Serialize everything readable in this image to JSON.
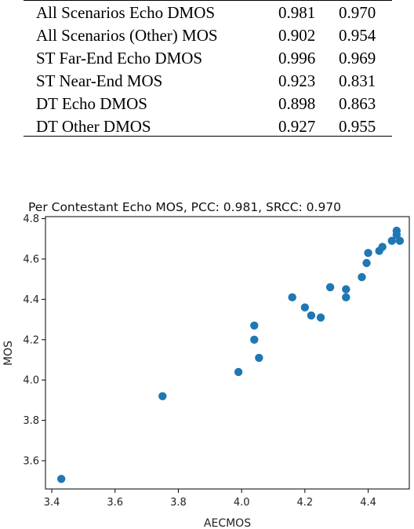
{
  "table": {
    "rows": [
      {
        "label": "All Scenarios Echo DMOS",
        "pcc": "0.981",
        "srcc": "0.970"
      },
      {
        "label": "All Scenarios (Other) MOS",
        "pcc": "0.902",
        "srcc": "0.954"
      },
      {
        "label": "ST Far-End Echo DMOS",
        "pcc": "0.996",
        "srcc": "0.969"
      },
      {
        "label": "ST Near-End MOS",
        "pcc": "0.923",
        "srcc": "0.831"
      },
      {
        "label": "DT Echo DMOS",
        "pcc": "0.898",
        "srcc": "0.863"
      },
      {
        "label": "DT Other DMOS",
        "pcc": "0.927",
        "srcc": "0.955"
      }
    ]
  },
  "chart_data": {
    "type": "scatter",
    "title": "Per Contestant Echo MOS, PCC: 0.981, SRCC: 0.970",
    "xlabel": "AECMOS",
    "ylabel": "MOS",
    "xlim": [
      3.38,
      4.53
    ],
    "ylim": [
      3.46,
      4.81
    ],
    "xticks": [
      "3.4",
      "3.6",
      "3.8",
      "4.0",
      "4.2",
      "4.4"
    ],
    "yticks": [
      "3.6",
      "3.8",
      "4.0",
      "4.2",
      "4.4",
      "4.6",
      "4.8"
    ],
    "grid": false,
    "marker_color": "#1f77b4",
    "points": [
      {
        "x": 3.43,
        "y": 3.51
      },
      {
        "x": 3.75,
        "y": 3.92
      },
      {
        "x": 3.99,
        "y": 4.04
      },
      {
        "x": 4.04,
        "y": 4.2
      },
      {
        "x": 4.04,
        "y": 4.27
      },
      {
        "x": 4.055,
        "y": 4.11
      },
      {
        "x": 4.16,
        "y": 4.41
      },
      {
        "x": 4.2,
        "y": 4.36
      },
      {
        "x": 4.22,
        "y": 4.32
      },
      {
        "x": 4.25,
        "y": 4.31
      },
      {
        "x": 4.28,
        "y": 4.46
      },
      {
        "x": 4.33,
        "y": 4.45
      },
      {
        "x": 4.33,
        "y": 4.41
      },
      {
        "x": 4.38,
        "y": 4.51
      },
      {
        "x": 4.395,
        "y": 4.58
      },
      {
        "x": 4.4,
        "y": 4.63
      },
      {
        "x": 4.435,
        "y": 4.64
      },
      {
        "x": 4.445,
        "y": 4.66
      },
      {
        "x": 4.475,
        "y": 4.69
      },
      {
        "x": 4.49,
        "y": 4.72
      },
      {
        "x": 4.49,
        "y": 4.74
      },
      {
        "x": 4.5,
        "y": 4.69
      }
    ]
  }
}
